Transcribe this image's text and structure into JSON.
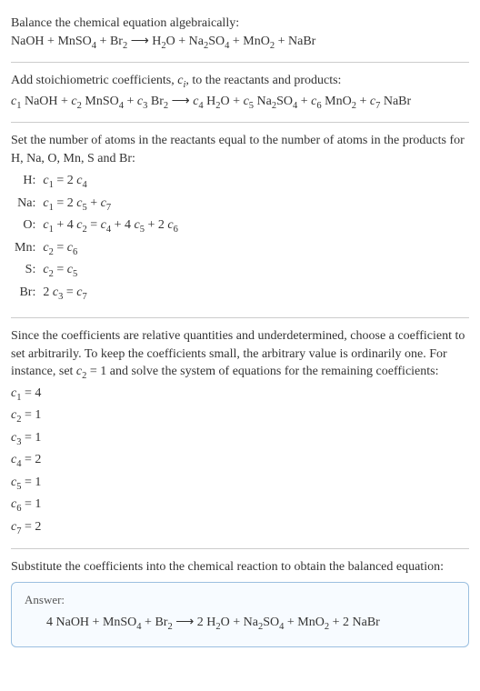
{
  "intro": {
    "line1": "Balance the chemical equation algebraically:",
    "reaction_lhs": "NaOH + MnSO",
    "reaction_mid1": " + Br",
    "reaction_arrow": " ⟶ H",
    "reaction_mid2": "O + Na",
    "reaction_mid3": "SO",
    "reaction_mid4": " + MnO",
    "reaction_mid5": " + NaBr"
  },
  "stoich": {
    "text": "Add stoichiometric coefficients, ",
    "ci": "c",
    "ci_sub": "i",
    "text2": ", to the reactants and products:",
    "r": {
      "c1": "c",
      "s1": "1",
      "t1": " NaOH + ",
      "c2": "c",
      "s2": "2",
      "t2": " MnSO",
      "c3": "c",
      "s3": "3",
      "t3": " Br",
      "arrow": " ⟶ ",
      "c4": "c",
      "s4": "4",
      "t4": " H",
      "c5": "c",
      "s5": "5",
      "t5": " Na",
      "c6": "c",
      "s6": "6",
      "t6": " MnO",
      "c7": "c",
      "s7": "7",
      "t7": " NaBr"
    }
  },
  "atoms": {
    "text1": "Set the number of atoms in the reactants equal to the number of atoms in the products for H, Na, O, Mn, S and Br:",
    "rows": {
      "H": {
        "lbl": "H:",
        "eq_a": "c",
        "eq_b": "1",
        "eq_c": " = 2 ",
        "eq_d": "c",
        "eq_e": "4"
      },
      "Na": {
        "lbl": "Na:",
        "eq_a": "c",
        "eq_b": "1",
        "eq_c": " = 2 ",
        "eq_d": "c",
        "eq_e": "5",
        "eq_f": " + ",
        "eq_g": "c",
        "eq_h": "7"
      },
      "O": {
        "lbl": "O:",
        "eq_a": "c",
        "eq_b": "1",
        "eq_c": " + 4 ",
        "eq_d": "c",
        "eq_e": "2",
        "eq_f": " = ",
        "eq_g": "c",
        "eq_h": "4",
        "eq_i": " + 4 ",
        "eq_j": "c",
        "eq_k": "5",
        "eq_l": " + 2 ",
        "eq_m": "c",
        "eq_n": "6"
      },
      "Mn": {
        "lbl": "Mn:",
        "eq_a": "c",
        "eq_b": "2",
        "eq_c": " = ",
        "eq_d": "c",
        "eq_e": "6"
      },
      "S": {
        "lbl": "S:",
        "eq_a": "c",
        "eq_b": "2",
        "eq_c": " = ",
        "eq_d": "c",
        "eq_e": "5"
      },
      "Br": {
        "lbl": "Br:",
        "eq_a": "2 ",
        "eq_b": "c",
        "eq_c": "3",
        "eq_d": " = ",
        "eq_e": "c",
        "eq_f": "7"
      }
    }
  },
  "solve": {
    "text": "Since the coefficients are relative quantities and underdetermined, choose a coefficient to set arbitrarily. To keep the coefficients small, the arbitrary value is ordinarily one. For instance, set ",
    "cv": "c",
    "cs": "2",
    "text2": " = 1 and solve the system of equations for the remaining coefficients:",
    "c": {
      "c1a": "c",
      "c1b": "1",
      "c1v": " = 4",
      "c2a": "c",
      "c2b": "2",
      "c2v": " = 1",
      "c3a": "c",
      "c3b": "3",
      "c3v": " = 1",
      "c4a": "c",
      "c4b": "4",
      "c4v": " = 2",
      "c5a": "c",
      "c5b": "5",
      "c5v": " = 1",
      "c6a": "c",
      "c6b": "6",
      "c6v": " = 1",
      "c7a": "c",
      "c7b": "7",
      "c7v": " = 2"
    }
  },
  "final": {
    "text": "Substitute the coefficients into the chemical reaction to obtain the balanced equation:",
    "answer_label": "Answer:",
    "eq": {
      "p1": "4 NaOH + MnSO",
      "s1": "4",
      "p2": " + Br",
      "s2": "2",
      "p3": " ⟶ 2 H",
      "s3": "2",
      "p4": "O + Na",
      "s4": "2",
      "p5": "SO",
      "s5": "4",
      "p6": " + MnO",
      "s6": "2",
      "p7": " + 2 NaBr"
    }
  },
  "subs": {
    "four": "4",
    "two": "2"
  }
}
